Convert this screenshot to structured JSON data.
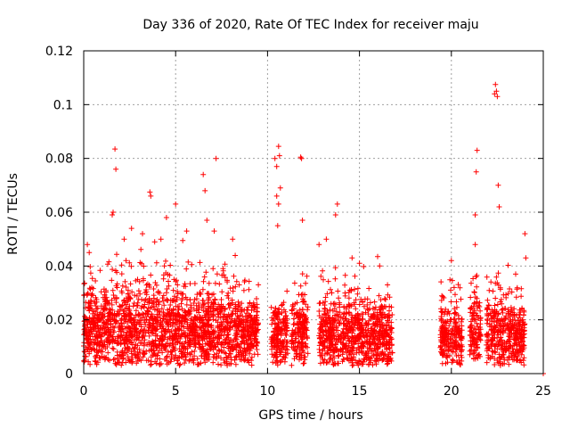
{
  "chart_data": {
    "type": "scatter",
    "title": "Day 336 of 2020, Rate Of TEC Index for receiver maju",
    "xlabel": "GPS time / hours",
    "ylabel": "ROTI / TECUs",
    "xlim": [
      0,
      25
    ],
    "ylim": [
      0,
      0.12
    ],
    "xticks": [
      0,
      5,
      10,
      15,
      20,
      25
    ],
    "xtick_labels": [
      "0",
      "5",
      "10",
      "15",
      "20",
      "25"
    ],
    "yticks": [
      0,
      0.02,
      0.04,
      0.06,
      0.08,
      0.1,
      0.12
    ],
    "ytick_labels": [
      "0",
      "0.02",
      "0.04",
      "0.06",
      "0.08",
      "0.1",
      "0.12"
    ],
    "grid": true,
    "marker": "+",
    "color": "#ff0000",
    "series": [
      {
        "name": "ROTI",
        "points": [
          [
            1.7,
            0.0835
          ],
          [
            1.75,
            0.076
          ],
          [
            1.6,
            0.06
          ],
          [
            1.55,
            0.059
          ],
          [
            3.6,
            0.0675
          ],
          [
            3.65,
            0.066
          ],
          [
            5.0,
            0.063
          ],
          [
            4.5,
            0.058
          ],
          [
            6.5,
            0.074
          ],
          [
            6.6,
            0.068
          ],
          [
            6.7,
            0.057
          ],
          [
            7.2,
            0.08
          ],
          [
            7.1,
            0.053
          ],
          [
            8.1,
            0.05
          ],
          [
            10.6,
            0.0845
          ],
          [
            10.65,
            0.081
          ],
          [
            10.4,
            0.08
          ],
          [
            10.5,
            0.077
          ],
          [
            10.7,
            0.069
          ],
          [
            10.5,
            0.066
          ],
          [
            10.6,
            0.063
          ],
          [
            10.55,
            0.055
          ],
          [
            11.8,
            0.0805
          ],
          [
            11.85,
            0.08
          ],
          [
            11.9,
            0.057
          ],
          [
            13.8,
            0.063
          ],
          [
            13.7,
            0.059
          ],
          [
            13.2,
            0.05
          ],
          [
            12.8,
            0.048
          ],
          [
            21.4,
            0.083
          ],
          [
            21.35,
            0.075
          ],
          [
            21.3,
            0.059
          ],
          [
            21.3,
            0.048
          ],
          [
            22.4,
            0.1075
          ],
          [
            22.45,
            0.105
          ],
          [
            22.35,
            0.104
          ],
          [
            22.5,
            0.103
          ],
          [
            22.55,
            0.07
          ],
          [
            22.6,
            0.062
          ],
          [
            24.0,
            0.052
          ],
          [
            20.0,
            0.042
          ],
          [
            24.05,
            0.043
          ],
          [
            0.2,
            0.048
          ],
          [
            0.3,
            0.045
          ],
          [
            2.6,
            0.054
          ],
          [
            2.2,
            0.05
          ],
          [
            3.2,
            0.052
          ],
          [
            4.2,
            0.05
          ],
          [
            5.6,
            0.053
          ],
          [
            15.0,
            0.041
          ],
          [
            16.1,
            0.04
          ],
          [
            14.6,
            0.043
          ],
          [
            9.5,
            0.033
          ],
          [
            23.5,
            0.037
          ],
          [
            25.0,
            0.0
          ]
        ]
      }
    ],
    "segments": [
      {
        "x0": 0.0,
        "x1": 7.0,
        "base": 0.016,
        "spread": 0.012
      },
      {
        "x0": 7.0,
        "x1": 9.2,
        "base": 0.015,
        "spread": 0.011
      },
      {
        "x0": 9.2,
        "x1": 9.5,
        "base": 0.016,
        "spread": 0.008
      },
      {
        "x0": 10.2,
        "x1": 11.1,
        "base": 0.014,
        "spread": 0.009
      },
      {
        "x0": 11.3,
        "x1": 12.2,
        "base": 0.016,
        "spread": 0.01
      },
      {
        "x0": 12.8,
        "x1": 16.8,
        "base": 0.014,
        "spread": 0.01
      },
      {
        "x0": 19.4,
        "x1": 20.6,
        "base": 0.014,
        "spread": 0.009
      },
      {
        "x0": 21.0,
        "x1": 21.6,
        "base": 0.015,
        "spread": 0.01
      },
      {
        "x0": 21.9,
        "x1": 24.0,
        "base": 0.014,
        "spread": 0.01
      }
    ]
  }
}
